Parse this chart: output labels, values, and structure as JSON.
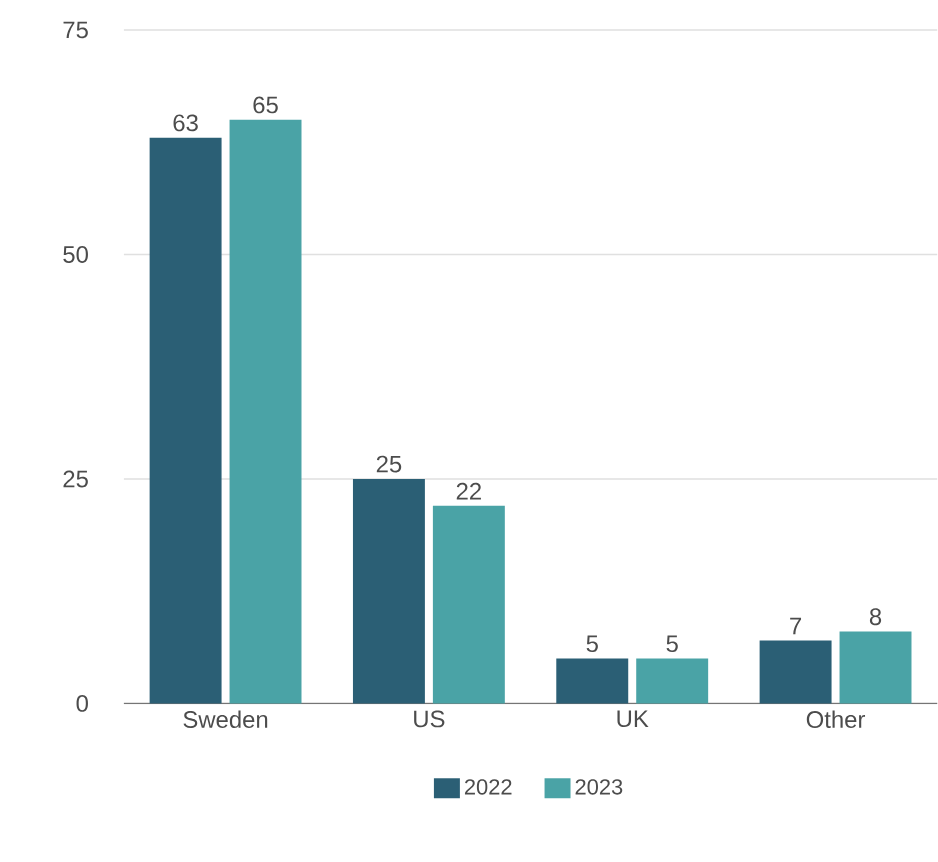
{
  "chart_data": {
    "type": "bar",
    "categories": [
      "Sweden",
      "US",
      "UK",
      "Other"
    ],
    "series": [
      {
        "name": "2022",
        "color": "#2b5f75",
        "values": [
          63,
          25,
          5,
          7
        ]
      },
      {
        "name": "2023",
        "color": "#4aa3a6",
        "values": [
          65,
          22,
          5,
          8
        ]
      }
    ],
    "ylim": [
      0,
      75
    ],
    "yticks": [
      0,
      25,
      50,
      75
    ],
    "grid": "y",
    "legend": "bottom",
    "data_labels": true
  }
}
